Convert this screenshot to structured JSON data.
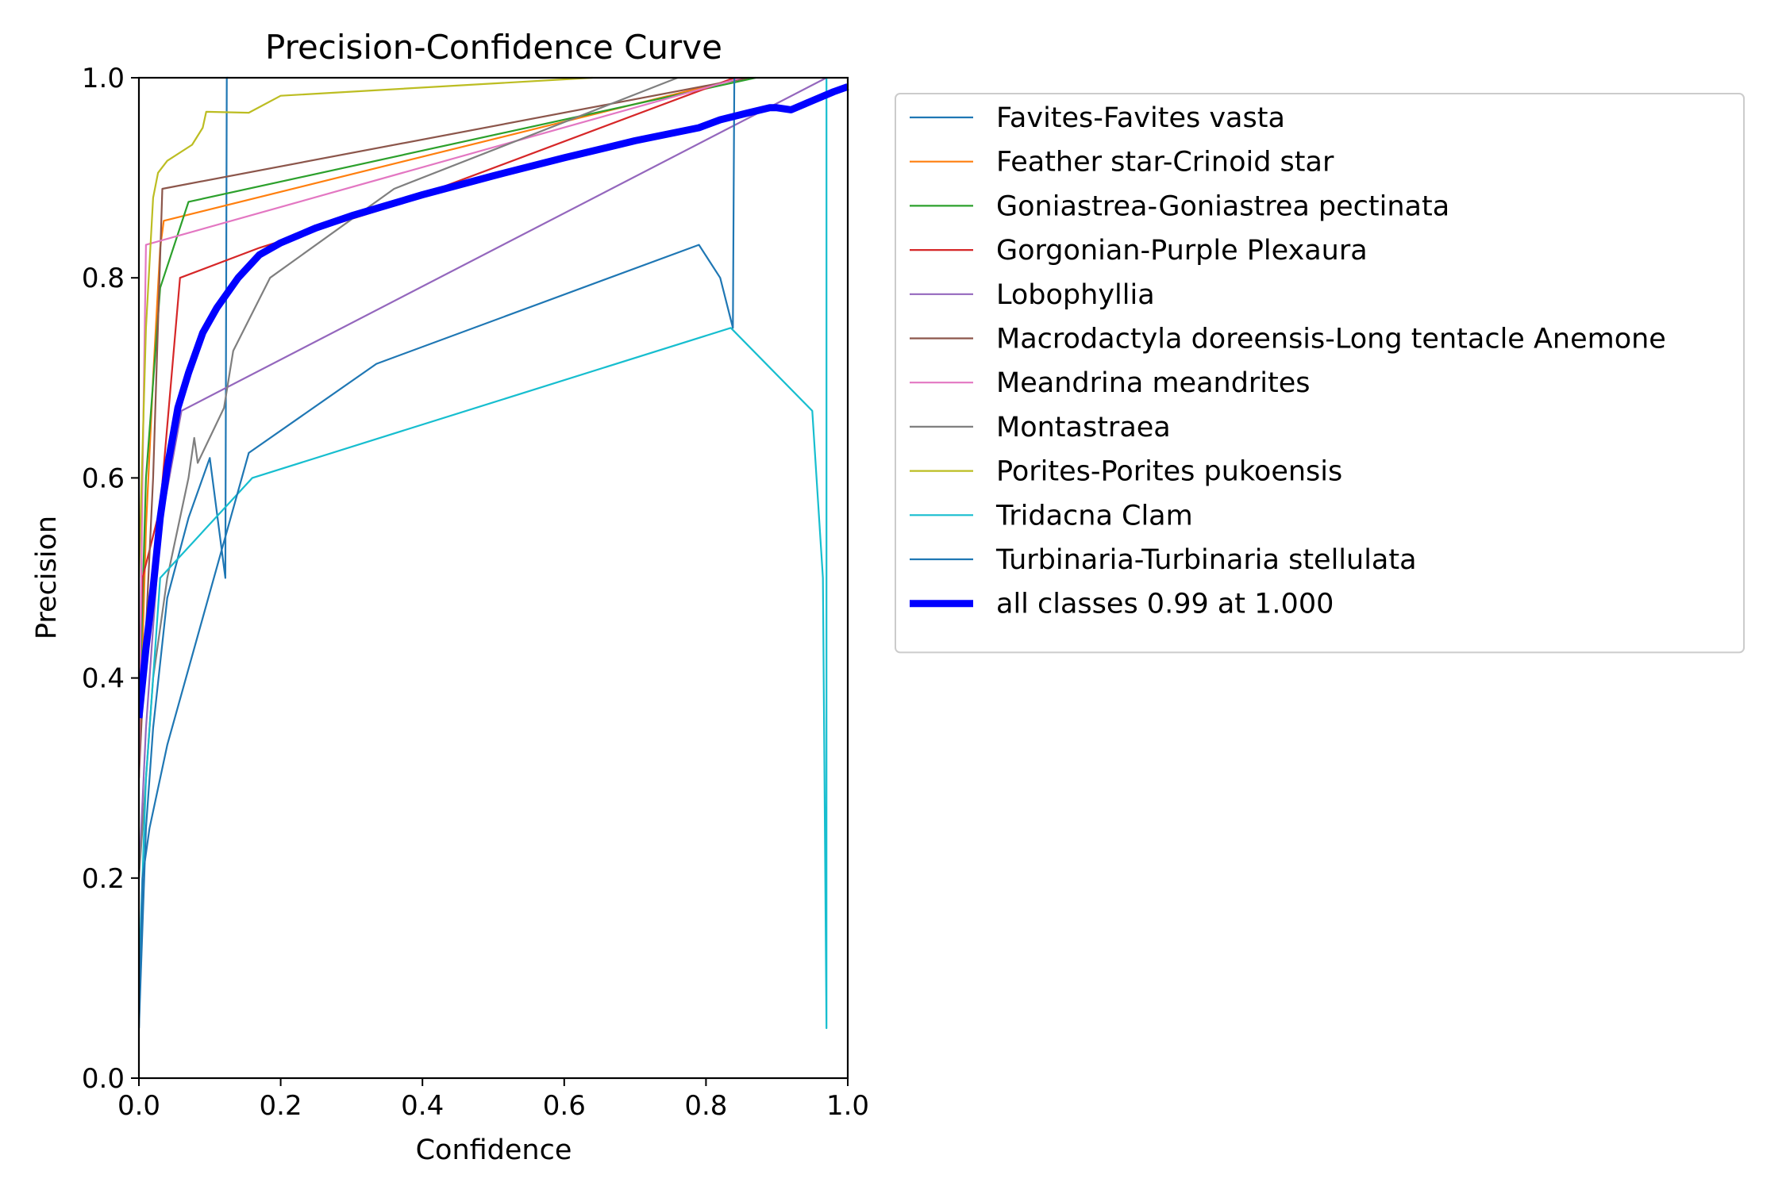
{
  "chart_data": {
    "type": "line",
    "title": "Precision-Confidence Curve",
    "xlabel": "Confidence",
    "ylabel": "Precision",
    "xlim": [
      0,
      1
    ],
    "ylim": [
      0,
      1
    ],
    "xticks": [
      "0.0",
      "0.2",
      "0.4",
      "0.6",
      "0.8",
      "1.0"
    ],
    "yticks": [
      "0.0",
      "0.2",
      "0.4",
      "0.6",
      "0.8",
      "1.0"
    ],
    "grid": false,
    "legend_position": "outside-right",
    "series": [
      {
        "name": "Favites-Favites vasta",
        "color": "#1f77b4",
        "width": 2.2,
        "points": [
          [
            0.0,
            0.05
          ],
          [
            0.01,
            0.25
          ],
          [
            0.02,
            0.35
          ],
          [
            0.04,
            0.48
          ],
          [
            0.07,
            0.56
          ],
          [
            0.1,
            0.62
          ],
          [
            0.122,
            0.5
          ],
          [
            0.124,
            1.0
          ],
          [
            0.126,
            1.0
          ]
        ]
      },
      {
        "name": "Feather star-Crinoid star",
        "color": "#ff7f0e",
        "width": 2.2,
        "points": [
          [
            0.0,
            0.3
          ],
          [
            0.01,
            0.55
          ],
          [
            0.02,
            0.7
          ],
          [
            0.03,
            0.83
          ],
          [
            0.035,
            0.857
          ],
          [
            0.85,
            1.0
          ]
        ]
      },
      {
        "name": "Goniastrea-Goniastrea pectinata",
        "color": "#2ca02c",
        "width": 2.2,
        "points": [
          [
            0.0,
            0.35
          ],
          [
            0.01,
            0.6
          ],
          [
            0.03,
            0.79
          ],
          [
            0.07,
            0.876
          ],
          [
            0.87,
            1.0
          ]
        ]
      },
      {
        "name": "Gorgonian-Purple Plexaura",
        "color": "#d62728",
        "width": 2.2,
        "points": [
          [
            0.0,
            0.4
          ],
          [
            0.005,
            0.5
          ],
          [
            0.03,
            0.57
          ],
          [
            0.058,
            0.8
          ],
          [
            0.17,
            0.83
          ],
          [
            0.35,
            0.87
          ],
          [
            0.84,
            1.0
          ]
        ]
      },
      {
        "name": "Lobophyllia",
        "color": "#9467bd",
        "width": 2.2,
        "points": [
          [
            0.0,
            0.2
          ],
          [
            0.01,
            0.35
          ],
          [
            0.03,
            0.55
          ],
          [
            0.06,
            0.667
          ],
          [
            0.97,
            1.0
          ]
        ]
      },
      {
        "name": "Macrodactyla doreensis-Long tentacle Anemone",
        "color": "#8c564b",
        "width": 2.2,
        "points": [
          [
            0.0,
            0.3
          ],
          [
            0.02,
            0.6
          ],
          [
            0.033,
            0.889
          ],
          [
            0.86,
            1.0
          ]
        ]
      },
      {
        "name": "Meandrina meandrites",
        "color": "#e377c2",
        "width": 2.2,
        "points": [
          [
            0.0,
            0.3
          ],
          [
            0.005,
            0.6
          ],
          [
            0.01,
            0.833
          ],
          [
            0.85,
            1.0
          ]
        ]
      },
      {
        "name": "Montastraea",
        "color": "#7f7f7f",
        "width": 2.2,
        "points": [
          [
            0.0,
            0.2
          ],
          [
            0.02,
            0.4
          ],
          [
            0.04,
            0.5
          ],
          [
            0.07,
            0.6
          ],
          [
            0.078,
            0.64
          ],
          [
            0.083,
            0.615
          ],
          [
            0.12,
            0.67
          ],
          [
            0.133,
            0.727
          ],
          [
            0.185,
            0.8
          ],
          [
            0.36,
            0.889
          ],
          [
            0.76,
            1.0
          ]
        ]
      },
      {
        "name": "Porites-Porites pukoensis",
        "color": "#bcbd22",
        "width": 2.2,
        "points": [
          [
            0.0,
            0.5
          ],
          [
            0.01,
            0.75
          ],
          [
            0.02,
            0.88
          ],
          [
            0.027,
            0.905
          ],
          [
            0.04,
            0.917
          ],
          [
            0.075,
            0.933
          ],
          [
            0.09,
            0.95
          ],
          [
            0.095,
            0.966
          ],
          [
            0.155,
            0.965
          ],
          [
            0.2,
            0.982
          ],
          [
            0.64,
            1.0
          ]
        ]
      },
      {
        "name": "Tridacna Clam",
        "color": "#17becf",
        "width": 2.2,
        "points": [
          [
            0.0,
            0.1
          ],
          [
            0.01,
            0.3
          ],
          [
            0.02,
            0.4
          ],
          [
            0.03,
            0.5
          ],
          [
            0.16,
            0.6
          ],
          [
            0.835,
            0.75
          ],
          [
            0.95,
            0.667
          ],
          [
            0.965,
            0.5
          ],
          [
            0.97,
            0.05
          ],
          [
            0.97,
            1.0
          ]
        ]
      },
      {
        "name": "Turbinaria-Turbinaria stellulata",
        "color": "#1f77b4",
        "width": 2.2,
        "points": [
          [
            0.0,
            0.05
          ],
          [
            0.005,
            0.2
          ],
          [
            0.015,
            0.25
          ],
          [
            0.04,
            0.333
          ],
          [
            0.155,
            0.625
          ],
          [
            0.335,
            0.714
          ],
          [
            0.79,
            0.833
          ],
          [
            0.82,
            0.8
          ],
          [
            0.838,
            0.75
          ],
          [
            0.84,
            1.0
          ]
        ]
      },
      {
        "name": "all classes 0.99 at 1.000",
        "color": "#0000ff",
        "width": 9,
        "points": [
          [
            0.0,
            0.36
          ],
          [
            0.01,
            0.43
          ],
          [
            0.02,
            0.49
          ],
          [
            0.03,
            0.56
          ],
          [
            0.04,
            0.61
          ],
          [
            0.055,
            0.67
          ],
          [
            0.07,
            0.705
          ],
          [
            0.09,
            0.745
          ],
          [
            0.11,
            0.77
          ],
          [
            0.14,
            0.8
          ],
          [
            0.17,
            0.823
          ],
          [
            0.2,
            0.835
          ],
          [
            0.25,
            0.85
          ],
          [
            0.3,
            0.862
          ],
          [
            0.4,
            0.883
          ],
          [
            0.5,
            0.902
          ],
          [
            0.6,
            0.92
          ],
          [
            0.7,
            0.937
          ],
          [
            0.79,
            0.95
          ],
          [
            0.82,
            0.958
          ],
          [
            0.86,
            0.965
          ],
          [
            0.89,
            0.97
          ],
          [
            0.9,
            0.97
          ],
          [
            0.92,
            0.968
          ],
          [
            0.95,
            0.977
          ],
          [
            0.98,
            0.986
          ],
          [
            1.0,
            0.991
          ]
        ]
      }
    ]
  }
}
